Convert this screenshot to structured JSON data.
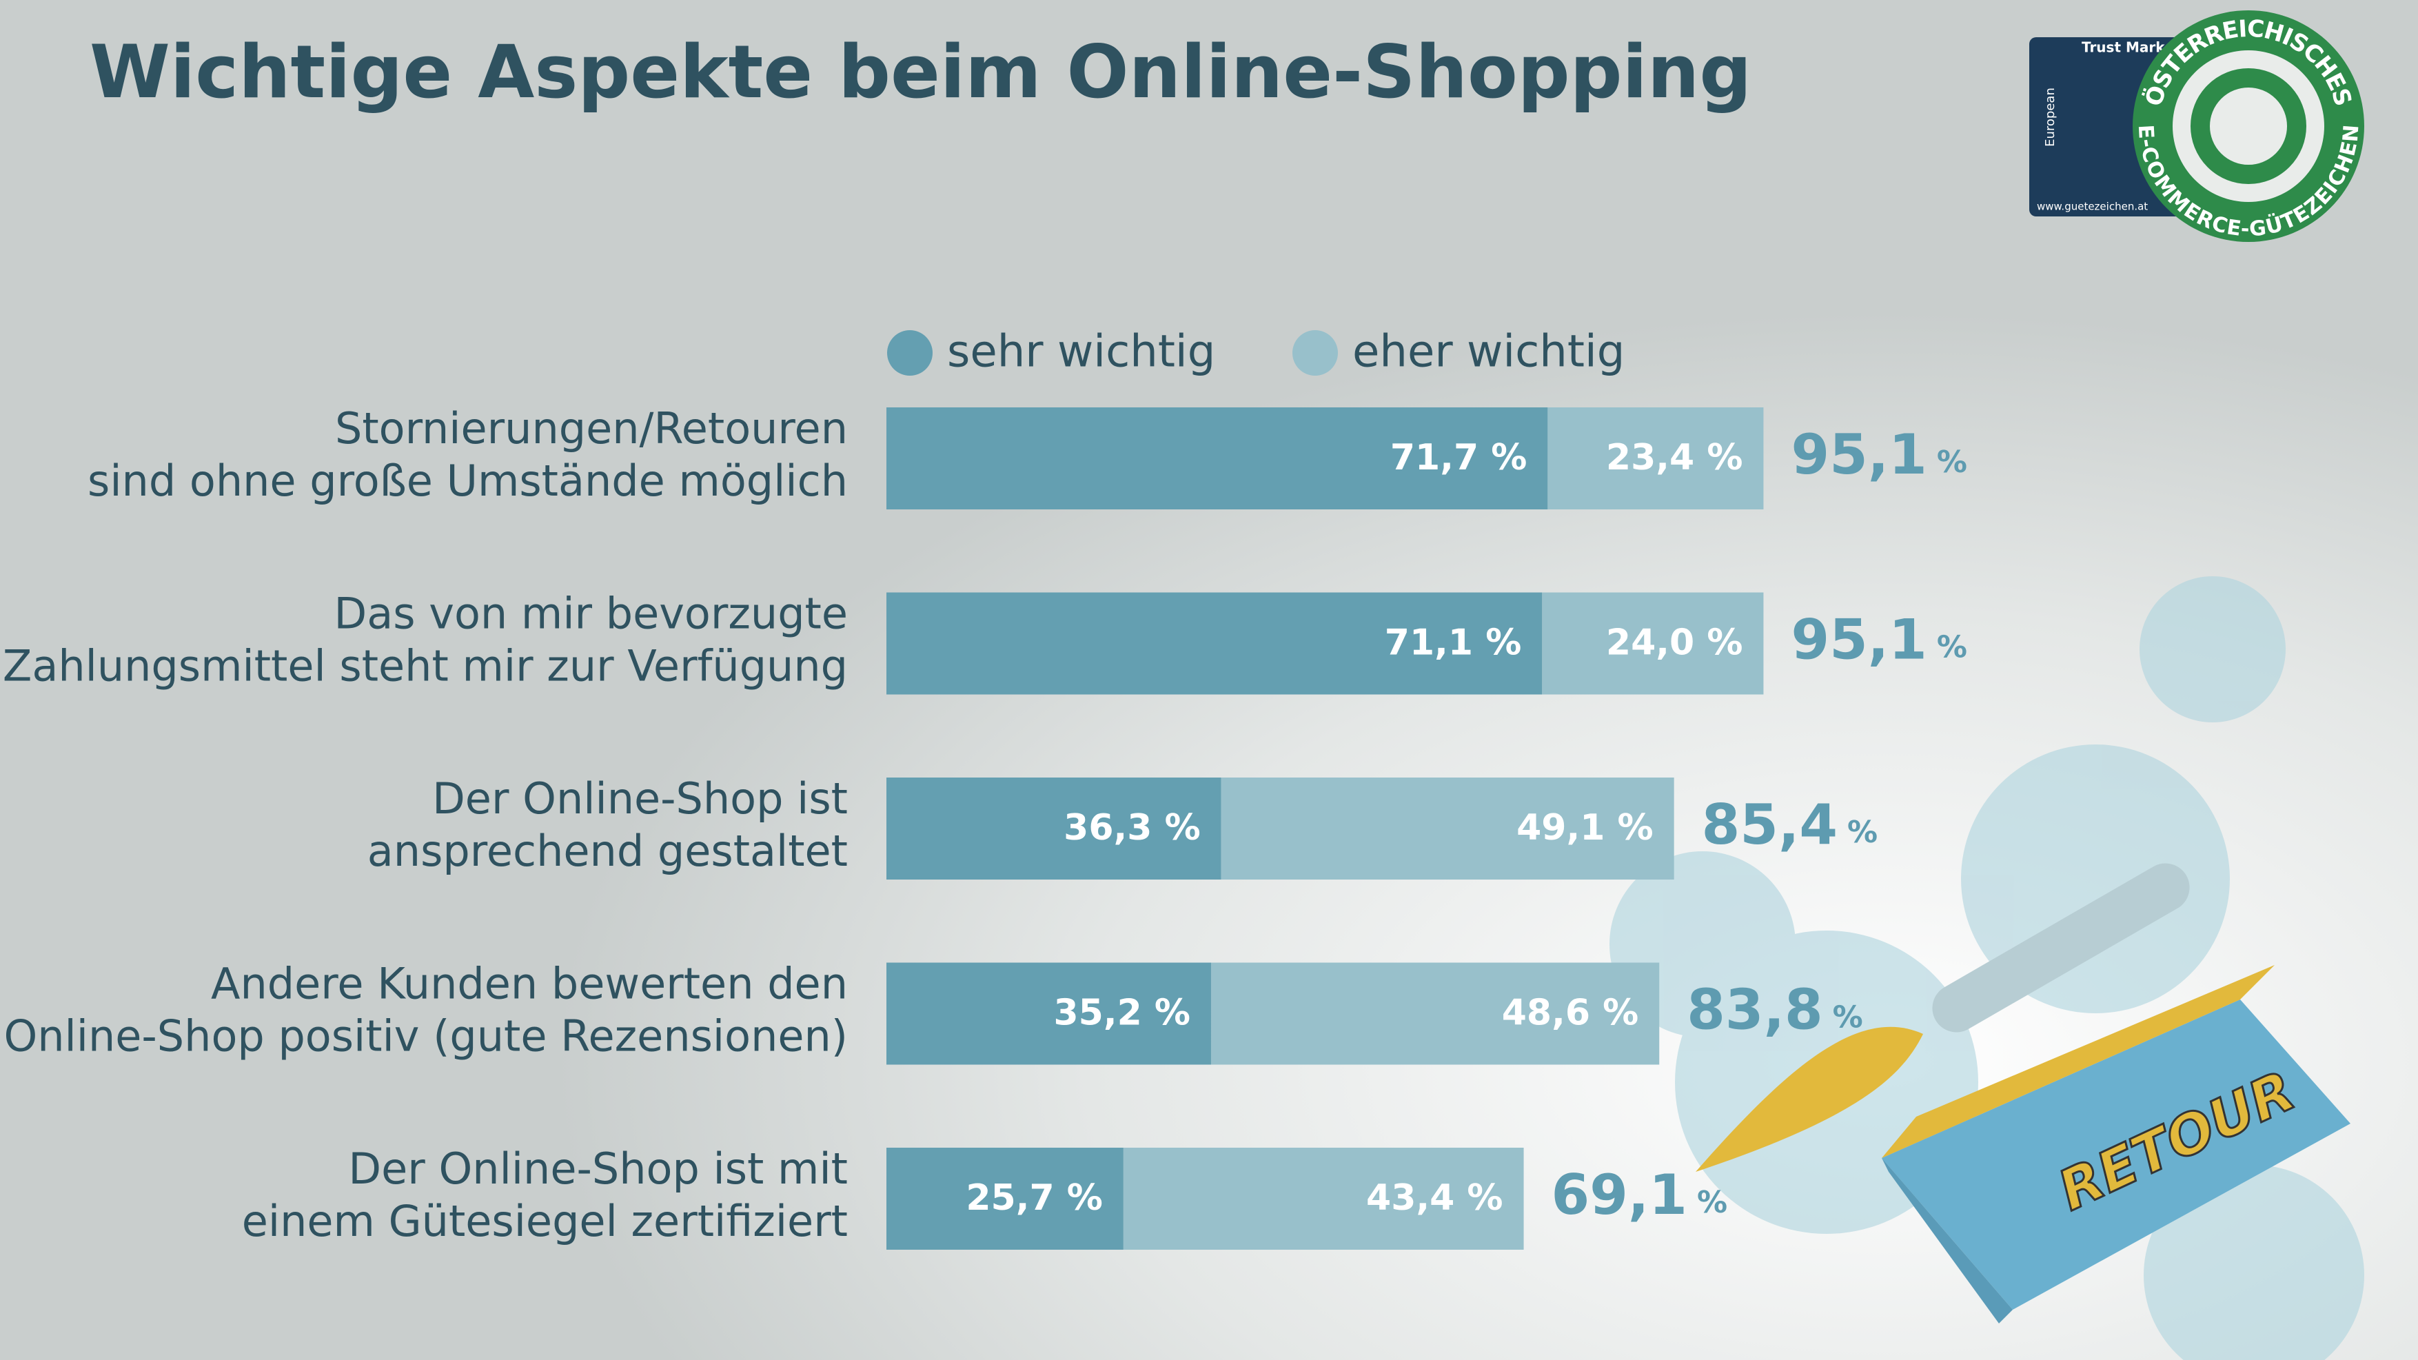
{
  "chart_data": {
    "type": "stacked-barh",
    "title": "Wichtige Aspekte beim Online-Shopping",
    "categories": [
      [
        "Stornierungen/Retouren",
        "sind ohne große Umstände möglich"
      ],
      [
        "Das von mir bevorzugte",
        "Zahlungsmittel steht mir zur Verfügung"
      ],
      [
        "Der Online-Shop ist",
        "ansprechend gestaltet"
      ],
      [
        "Andere Kunden bewerten den",
        "Online-Shop positiv (gute Rezensionen)"
      ],
      [
        "Der Online-Shop ist mit",
        "einem Gütesiegel zertifiziert"
      ]
    ],
    "series": [
      {
        "name": "sehr wichtig",
        "color": "#649fb1",
        "values": [
          71.7,
          71.1,
          36.3,
          35.2,
          25.7
        ],
        "value_labels": [
          "71,7 %",
          "71,1 %",
          "36,3 %",
          "35,2 %",
          "25,7 %"
        ]
      },
      {
        "name": "eher wichtig",
        "color": "#98c0cb",
        "values": [
          23.4,
          24.0,
          49.1,
          48.6,
          43.4
        ],
        "value_labels": [
          "23,4 %",
          "24,0 %",
          "49,1 %",
          "48,6 %",
          "43,4 %"
        ]
      }
    ],
    "totals": {
      "values": [
        95.1,
        95.1,
        85.4,
        83.8,
        69.1
      ],
      "value_labels": [
        "95,1",
        "95,1",
        "85,4",
        "83,8",
        "69,1"
      ],
      "unit": "%",
      "color": "#5e9bb0"
    },
    "xlim": [
      0,
      100
    ]
  },
  "logo": {
    "top": "Trust Mark",
    "side": "European",
    "url": "www.guetezeichen.at",
    "ring_top": "ÖSTERREICHISCHES",
    "ring_bottom": "E-COMMERCE-GÜTEZEICHEN"
  },
  "illustration": {
    "label": "RETOUR"
  }
}
